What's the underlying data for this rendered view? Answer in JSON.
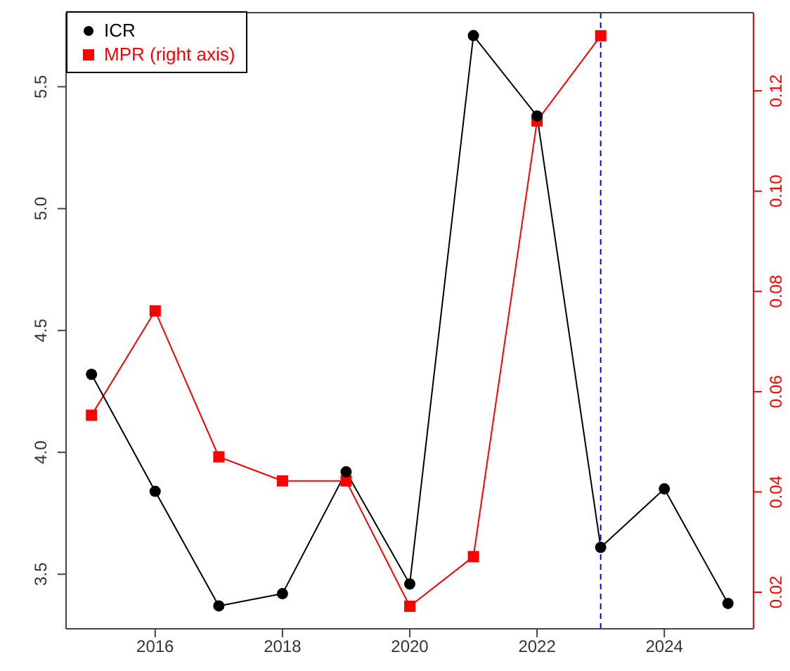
{
  "chart_data": {
    "type": "line",
    "x": [
      2015,
      2016,
      2017,
      2018,
      2019,
      2020,
      2021,
      2022,
      2023,
      2024,
      2025
    ],
    "series": [
      {
        "name": "ICR",
        "color": "#000000",
        "marker": "circle",
        "values": [
          4.32,
          3.84,
          3.37,
          3.42,
          3.92,
          3.46,
          5.71,
          5.38,
          3.61,
          3.85,
          3.38
        ]
      },
      {
        "name": "MPR (right axis)",
        "color": "#ff0000",
        "marker": "square",
        "axis": "y2",
        "values": [
          0.0553,
          0.0761,
          0.047,
          0.0422,
          0.0422,
          0.0172,
          0.0271,
          0.114,
          0.131,
          null,
          null
        ]
      }
    ],
    "xlim": [
      2014.6,
      2025.4
    ],
    "xticks": [
      2016,
      2018,
      2020,
      2022,
      2024
    ],
    "ylim": [
      3.276,
      5.804
    ],
    "yticks": [
      3.5,
      {
        "value": 4,
        "label": "4.0"
      },
      4.5,
      {
        "value": 5,
        "label": "5.0"
      },
      5.5
    ],
    "y2lim": [
      0.0127,
      0.1356
    ],
    "y2ticks": [
      0.02,
      0.04,
      0.06,
      0.08,
      {
        "value": 0.1,
        "label": "0.10"
      },
      0.12
    ],
    "ref_lines": [
      {
        "axis": "x",
        "value": 2023,
        "color": "#0000ff",
        "line_style": "dashed"
      }
    ],
    "legend": "top left",
    "grid": false
  }
}
